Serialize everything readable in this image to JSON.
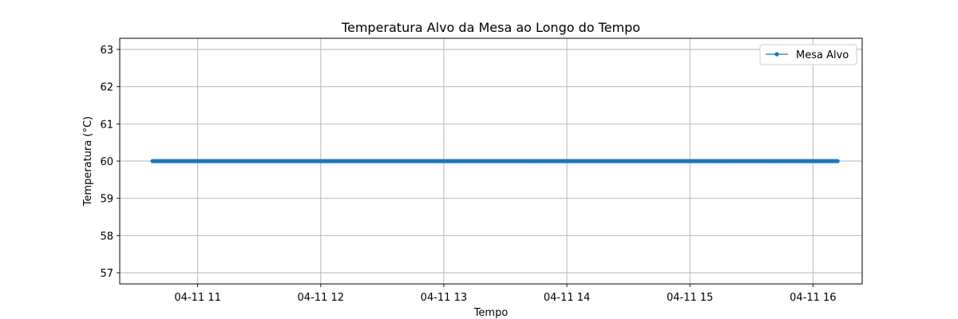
{
  "chart_data": {
    "type": "line",
    "title": "Temperatura Alvo da Mesa ao Longo do Tempo",
    "xlabel": "Tempo",
    "ylabel": "Temperatura (°C)",
    "x_unit": "time",
    "xlim": [
      "04-11 10:22",
      "16:24"
    ],
    "ylim": [
      56.7,
      63.3
    ],
    "yticks": [
      57,
      58,
      59,
      60,
      61,
      62,
      63
    ],
    "xticks": [
      "04-11 11",
      "04-11 12",
      "04-11 13",
      "04-11 14",
      "04-11 15",
      "04-11 16"
    ],
    "grid": true,
    "legend_position": "top-right",
    "series": [
      {
        "name": "Mesa Alvo",
        "color": "#1f77b4",
        "marker": "circle",
        "x": [
          "10:38",
          "16:12"
        ],
        "y": [
          60,
          60
        ],
        "note_dense_points": "points densely sampled across the interval, all at 60"
      }
    ]
  }
}
